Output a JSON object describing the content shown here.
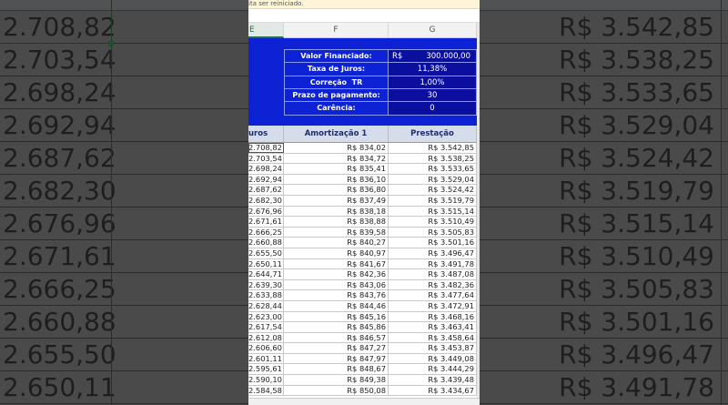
{
  "notice": "ita ser reiniciado.",
  "column_headers": [
    "E",
    "F",
    "G"
  ],
  "parameters": [
    {
      "label": "Valor Financiado:",
      "currency": "R$",
      "value": "300.000,00"
    },
    {
      "label": "Taxa de Juros:",
      "value": "11,38%"
    },
    {
      "label": "Correção  TR",
      "value": "1,00%"
    },
    {
      "label": "Prazo de pagamento:",
      "value": "30"
    },
    {
      "label": "Carência:",
      "value": "0"
    }
  ],
  "table": {
    "headers": [
      "uros",
      "Amortização 1",
      "Prestação"
    ],
    "rows": [
      [
        "2.708,82",
        "R$ 834,02",
        "R$ 3.542,85"
      ],
      [
        "2.703,54",
        "R$ 834,72",
        "R$ 3.538,25"
      ],
      [
        "2.698,24",
        "R$ 835,41",
        "R$ 3.533,65"
      ],
      [
        "2.692,94",
        "R$ 836,10",
        "R$ 3.529,04"
      ],
      [
        "2.687,62",
        "R$ 836,80",
        "R$ 3.524,42"
      ],
      [
        "2.682,30",
        "R$ 837,49",
        "R$ 3.519,79"
      ],
      [
        "2.676,96",
        "R$ 838,18",
        "R$ 3.515,14"
      ],
      [
        "2.671,61",
        "R$ 838,88",
        "R$ 3.510,49"
      ],
      [
        "2.666,25",
        "R$ 839,58",
        "R$ 3.505,83"
      ],
      [
        "2.660,88",
        "R$ 840,27",
        "R$ 3.501,16"
      ],
      [
        "2.655,50",
        "R$ 840,97",
        "R$ 3.496,47"
      ],
      [
        "2.650,11",
        "R$ 841,67",
        "R$ 3.491,78"
      ],
      [
        "2.644,71",
        "R$ 842,36",
        "R$ 3.487,08"
      ],
      [
        "2.639,30",
        "R$ 843,06",
        "R$ 3.482,36"
      ],
      [
        "2.633,88",
        "R$ 843,76",
        "R$ 3.477,64"
      ],
      [
        "2.628,44",
        "R$ 844,46",
        "R$ 3.472,91"
      ],
      [
        "2.623,00",
        "R$ 845,16",
        "R$ 3.468,16"
      ],
      [
        "2.617,54",
        "R$ 845,86",
        "R$ 3.463,41"
      ],
      [
        "2.612,08",
        "R$ 846,57",
        "R$ 3.458,64"
      ],
      [
        "2.606,60",
        "R$ 847,27",
        "R$ 3.453,87"
      ],
      [
        "2.601,11",
        "R$ 847,97",
        "R$ 3.449,08"
      ],
      [
        "2.595,61",
        "R$ 848,67",
        "R$ 3.444,29"
      ],
      [
        "2.590,10",
        "R$ 849,38",
        "R$ 3.439,48"
      ],
      [
        "2.584,58",
        "R$ 850,08",
        "R$ 3.434,67"
      ]
    ]
  },
  "zoom_left": [
    "2.708,82",
    "2.703,54",
    "2.698,24",
    "2.692,94",
    "2.687,62",
    "2.682,30",
    "2.676,96",
    "2.671,61",
    "2.666,25",
    "2.660,88",
    "2.655,50",
    "2.650,11"
  ],
  "zoom_right": [
    "R$ 3.542,85",
    "R$ 3.538,25",
    "R$ 3.533,65",
    "R$ 3.529,04",
    "R$ 3.524,42",
    "R$ 3.519,79",
    "R$ 3.515,14",
    "R$ 3.510,49",
    "R$ 3.505,83",
    "R$ 3.501,16",
    "R$ 3.496,47",
    "R$ 3.491,78"
  ],
  "colors": {
    "blue_panel": "#0c22d4",
    "value_cell": "#0b0fa0",
    "header_fill": "#d5dcea",
    "selection": "#217346"
  }
}
